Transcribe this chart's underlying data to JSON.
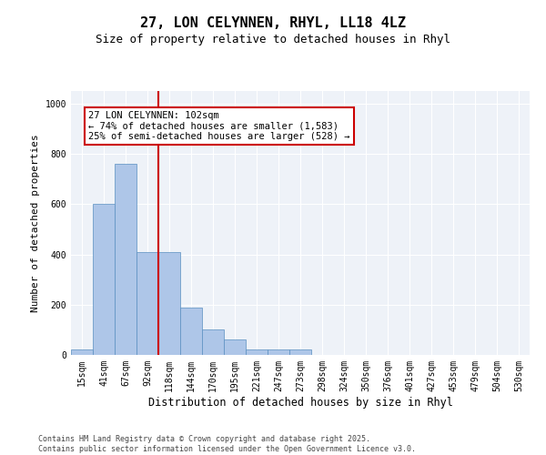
{
  "title": "27, LON CELYNNEN, RHYL, LL18 4LZ",
  "subtitle": "Size of property relative to detached houses in Rhyl",
  "xlabel": "Distribution of detached houses by size in Rhyl",
  "ylabel": "Number of detached properties",
  "categories": [
    "15sqm",
    "41sqm",
    "67sqm",
    "92sqm",
    "118sqm",
    "144sqm",
    "170sqm",
    "195sqm",
    "221sqm",
    "247sqm",
    "273sqm",
    "298sqm",
    "324sqm",
    "350sqm",
    "376sqm",
    "401sqm",
    "427sqm",
    "453sqm",
    "479sqm",
    "504sqm",
    "530sqm"
  ],
  "values": [
    20,
    600,
    760,
    410,
    410,
    190,
    100,
    60,
    20,
    20,
    20,
    0,
    0,
    0,
    0,
    0,
    0,
    0,
    0,
    0,
    0
  ],
  "bar_color": "#aec6e8",
  "bar_edge_color": "#5a8fc0",
  "vline_x": 3.5,
  "vline_color": "#cc0000",
  "annotation_box_text": "27 LON CELYNNEN: 102sqm\n← 74% of detached houses are smaller (1,583)\n25% of semi-detached houses are larger (528) →",
  "annotation_box_color": "#cc0000",
  "annotation_box_facecolor": "white",
  "ylim": [
    0,
    1050
  ],
  "yticks": [
    0,
    200,
    400,
    600,
    800,
    1000
  ],
  "bg_color": "#eef2f8",
  "grid_color": "white",
  "footer_text": "Contains HM Land Registry data © Crown copyright and database right 2025.\nContains public sector information licensed under the Open Government Licence v3.0.",
  "title_fontsize": 11,
  "subtitle_fontsize": 9,
  "xlabel_fontsize": 8.5,
  "ylabel_fontsize": 8,
  "tick_fontsize": 7,
  "annotation_fontsize": 7.5,
  "footer_fontsize": 6
}
